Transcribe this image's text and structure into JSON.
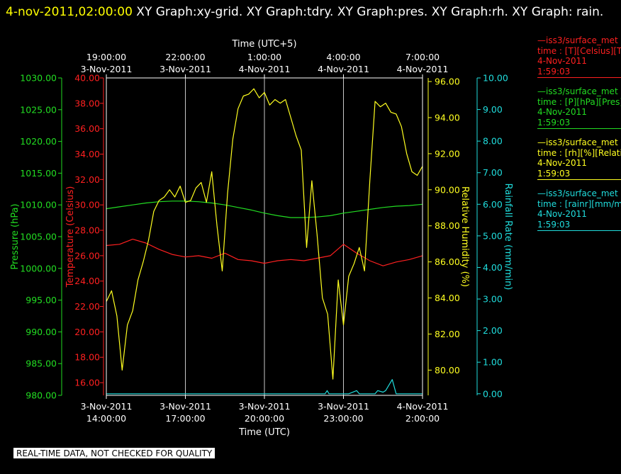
{
  "title": {
    "timestamp": "4-nov-2011,02:00:00",
    "text": "  XY Graph:xy-grid.  XY Graph:tdry.  XY Graph:pres.  XY Graph:rh.  XY Graph: rain."
  },
  "top_axis": {
    "label": "Time (UTC+5)",
    "ticks": [
      {
        "time": "19:00:00",
        "date": "3-Nov-2011"
      },
      {
        "time": "22:00:00",
        "date": "3-Nov-2011"
      },
      {
        "time": "1:00:00",
        "date": "4-Nov-2011"
      },
      {
        "time": "4:00:00",
        "date": "4-Nov-2011"
      },
      {
        "time": "7:00:00",
        "date": "4-Nov-2011"
      }
    ]
  },
  "bottom_axis": {
    "label": "Time (UTC)",
    "ticks": [
      {
        "date": "3-Nov-2011",
        "time": "14:00:00"
      },
      {
        "date": "3-Nov-2011",
        "time": "17:00:00"
      },
      {
        "date": "3-Nov-2011",
        "time": "20:00:00"
      },
      {
        "date": "3-Nov-2011",
        "time": "23:00:00"
      },
      {
        "date": "4-Nov-2011",
        "time": "2:00:00"
      }
    ]
  },
  "legend": [
    {
      "line1": "—iss3/surface_met",
      "line2": "time : [T][Celsius][Tdry]",
      "line3": "4-Nov-2011",
      "line4": "1:59:03",
      "color": "#ff2020"
    },
    {
      "line1": "—iss3/surface_met",
      "line2": "time : [P][hPa][Pres]",
      "line3": "4-Nov-2011",
      "line4": "1:59:03",
      "color": "#22dd22"
    },
    {
      "line1": "—iss3/surface_met",
      "line2": "time : [rh][%][Relative",
      "line3": "4-Nov-2011",
      "line4": "1:59:03",
      "color": "#ffff20"
    },
    {
      "line1": "—iss3/surface_met",
      "line2": "time : [rainr][mm/min]",
      "line3": "4-Nov-2011",
      "line4": "1:59:03",
      "color": "#20dddd"
    }
  ],
  "footer": "REAL-TIME DATA, NOT CHECKED FOR QUALITY",
  "chart_data": {
    "type": "line",
    "x_unit": "hours since 3-Nov-2011 14:00 UTC",
    "xlim": [
      0,
      12
    ],
    "axes": {
      "pressure": {
        "label": "Pressure (hPa)",
        "ylim": [
          980,
          1030
        ],
        "ticks": [
          980,
          985,
          990,
          995,
          1000,
          1005,
          1010,
          1015,
          1020,
          1025,
          1030
        ],
        "color": "#22dd22"
      },
      "temperature": {
        "label": "Temperature (Celsius)",
        "ylim": [
          15,
          40
        ],
        "ticks": [
          16,
          18,
          20,
          22,
          24,
          26,
          28,
          30,
          32,
          34,
          36,
          38,
          40
        ],
        "color": "#ff2020"
      },
      "rh": {
        "label": "Relative Humidity (%)",
        "ylim": [
          78.6,
          96.2
        ],
        "ticks": [
          80,
          82,
          84,
          86,
          88,
          90,
          92,
          94,
          96
        ],
        "color": "#ffff20"
      },
      "rain": {
        "label": "Rainfall Rate (mm/min)",
        "ylim": [
          -0.05,
          10
        ],
        "ticks": [
          0,
          1,
          2,
          3,
          4,
          5,
          6,
          7,
          8,
          9,
          10
        ],
        "color": "#20dddd"
      }
    },
    "series": [
      {
        "name": "Tdry",
        "axis": "temperature",
        "color": "#ff2020",
        "x": [
          0,
          0.5,
          1,
          1.5,
          2,
          2.5,
          3,
          3.5,
          4,
          4.5,
          5,
          5.5,
          6,
          6.5,
          7,
          7.5,
          8,
          8.5,
          9,
          9.5,
          10,
          10.5,
          11,
          11.5,
          12
        ],
        "y": [
          26.8,
          26.9,
          27.3,
          27.0,
          26.5,
          26.1,
          25.9,
          26.0,
          25.8,
          26.2,
          25.7,
          25.6,
          25.4,
          25.6,
          25.7,
          25.6,
          25.8,
          26.0,
          26.9,
          26.2,
          25.6,
          25.2,
          25.5,
          25.7,
          26.0
        ]
      },
      {
        "name": "Pres",
        "axis": "pressure",
        "color": "#22dd22",
        "x": [
          0,
          0.5,
          1,
          1.5,
          2,
          2.5,
          3,
          3.5,
          4,
          4.5,
          5,
          5.5,
          6,
          6.5,
          7,
          7.5,
          8,
          8.5,
          9,
          9.5,
          10,
          10.5,
          11,
          11.5,
          12
        ],
        "y": [
          1009.4,
          1009.7,
          1010.0,
          1010.3,
          1010.5,
          1010.6,
          1010.6,
          1010.5,
          1010.3,
          1010.0,
          1009.6,
          1009.2,
          1008.7,
          1008.3,
          1008.0,
          1008.0,
          1008.1,
          1008.3,
          1008.7,
          1009.0,
          1009.3,
          1009.6,
          1009.8,
          1009.9,
          1010.1
        ]
      },
      {
        "name": "Relative Humidity",
        "axis": "rh",
        "color": "#ffff20",
        "x": [
          0,
          0.2,
          0.4,
          0.6,
          0.8,
          1.0,
          1.2,
          1.4,
          1.6,
          1.8,
          2.0,
          2.2,
          2.4,
          2.6,
          2.8,
          3.0,
          3.2,
          3.4,
          3.6,
          3.8,
          4.0,
          4.2,
          4.4,
          4.6,
          4.8,
          5.0,
          5.2,
          5.4,
          5.6,
          5.8,
          6.0,
          6.2,
          6.4,
          6.6,
          6.8,
          7.0,
          7.2,
          7.4,
          7.6,
          7.8,
          8.0,
          8.2,
          8.4,
          8.6,
          8.8,
          9.0,
          9.2,
          9.4,
          9.6,
          9.8,
          10.0,
          10.2,
          10.4,
          10.6,
          10.8,
          11.0,
          11.2,
          11.4,
          11.6,
          11.8,
          12.0
        ],
        "y": [
          83.8,
          84.4,
          83.0,
          80.0,
          82.5,
          83.3,
          85.0,
          86.0,
          87.2,
          88.8,
          89.4,
          89.6,
          90.0,
          89.6,
          90.2,
          89.3,
          89.4,
          90.1,
          90.4,
          89.3,
          91.0,
          88.0,
          85.5,
          89.8,
          92.8,
          94.5,
          95.2,
          95.3,
          95.6,
          95.1,
          95.4,
          94.7,
          95.0,
          94.8,
          95.0,
          94.0,
          93.0,
          92.2,
          86.8,
          90.5,
          87.5,
          84.0,
          83.1,
          79.5,
          85.0,
          82.5,
          85.2,
          85.9,
          86.8,
          85.5,
          90.5,
          94.9,
          94.6,
          94.8,
          94.3,
          94.2,
          93.5,
          92.0,
          91.0,
          90.8,
          91.3
        ]
      },
      {
        "name": "Rainfall Rate",
        "axis": "rain",
        "color": "#20dddd",
        "x": [
          0,
          8.3,
          8.38,
          8.45,
          8.6,
          9.2,
          9.5,
          9.55,
          9.6,
          10.2,
          10.3,
          10.5,
          10.6,
          10.85,
          11.0,
          12.0
        ],
        "y": [
          0,
          0,
          0.1,
          0,
          0,
          0,
          0.1,
          0.05,
          0,
          0,
          0.1,
          0.05,
          0.1,
          0.45,
          0,
          0
        ]
      }
    ]
  }
}
